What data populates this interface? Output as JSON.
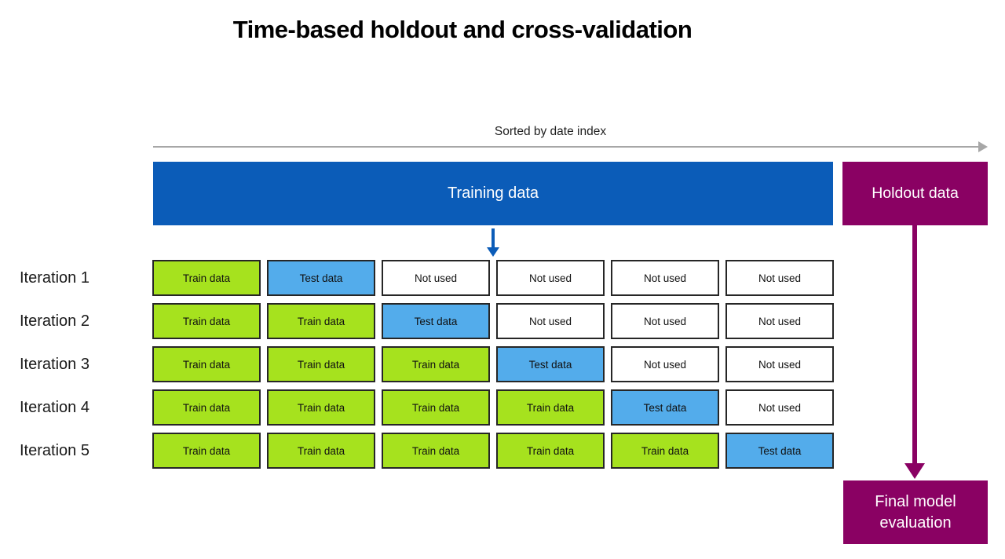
{
  "title": "Time-based holdout and cross-validation",
  "timeline": {
    "label": "Sorted by date index"
  },
  "training_bar": {
    "label": "Training data"
  },
  "holdout_bar": {
    "label": "Holdout data"
  },
  "final_box": {
    "label": "Final model evaluation"
  },
  "cell_types": {
    "train": {
      "label": "Train data",
      "color": "#A6E21E"
    },
    "test": {
      "label": "Test data",
      "color": "#53ACEB"
    },
    "unused": {
      "label": "Not used",
      "color": "#FFFFFF"
    }
  },
  "iterations": [
    {
      "label": "Iteration 1",
      "cells": [
        "train",
        "test",
        "unused",
        "unused",
        "unused",
        "unused"
      ]
    },
    {
      "label": "Iteration 2",
      "cells": [
        "train",
        "train",
        "test",
        "unused",
        "unused",
        "unused"
      ]
    },
    {
      "label": "Iteration 3",
      "cells": [
        "train",
        "train",
        "train",
        "test",
        "unused",
        "unused"
      ]
    },
    {
      "label": "Iteration 4",
      "cells": [
        "train",
        "train",
        "train",
        "train",
        "test",
        "unused"
      ]
    },
    {
      "label": "Iteration 5",
      "cells": [
        "train",
        "train",
        "train",
        "train",
        "train",
        "test"
      ]
    }
  ],
  "colors": {
    "training_blue": "#0B5CB8",
    "holdout_purple": "#8A0163",
    "arrow_gray": "#A7A7A7"
  }
}
